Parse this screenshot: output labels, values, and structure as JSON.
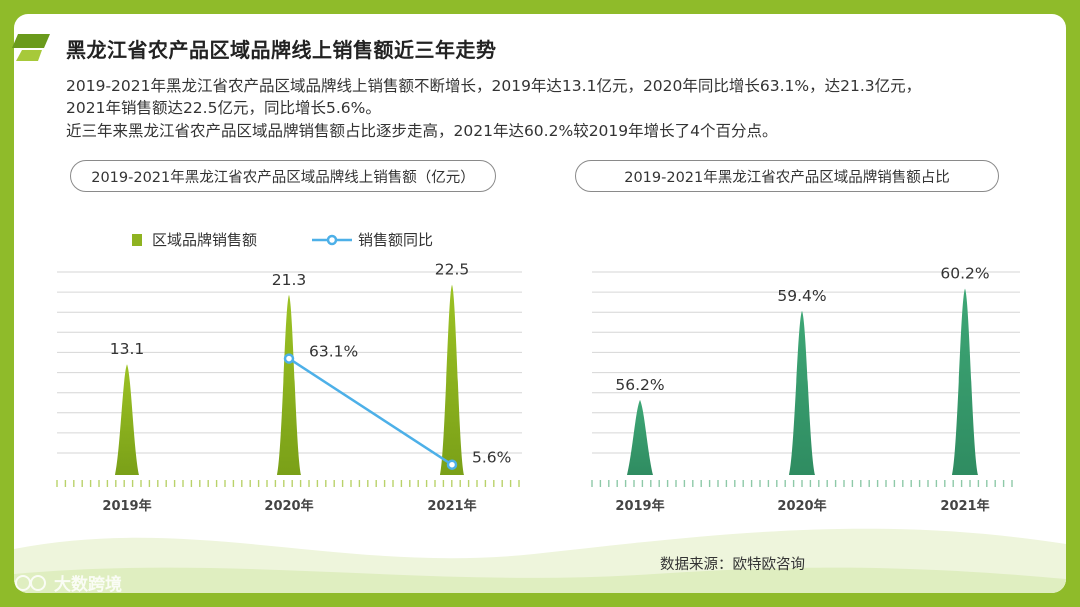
{
  "page": {
    "title": "黑龙江省农产品区域品牌线上销售额近三年走势",
    "summary_line1": "2019-2021年黑龙江省农产品区域品牌线上销售额不断增长，2019年达13.1亿元，2020年同比增长63.1%，达21.3亿元，",
    "summary_line2": "2021年销售额达22.5亿元，同比增长5.6%。",
    "summary_line3": "近三年来黑龙江省农产品区域品牌销售额占比逐步走高，2021年达60.2%较2019年增长了4个百分点。",
    "source": "数据来源：欧特欧咨询",
    "watermark": "大数跨境"
  },
  "colors": {
    "frame": "#8fbb2a",
    "bar_green": "#8fb321",
    "bar_teal": "#3a9a6e",
    "line_blue": "#4db0e8",
    "grid": "#d6d6d6"
  },
  "chart_data": [
    {
      "type": "bar",
      "title": "2019-2021年黑龙江省农产品区域品牌线上销售额（亿元）",
      "categories": [
        "2019年",
        "2020年",
        "2021年"
      ],
      "series": [
        {
          "name": "区域品牌销售额",
          "kind": "bar",
          "values": [
            13.1,
            21.3,
            22.5
          ],
          "labels": [
            "13.1",
            "21.3",
            "22.5"
          ]
        },
        {
          "name": "销售额同比",
          "kind": "line",
          "values": [
            null,
            63.1,
            5.6
          ],
          "labels": [
            "",
            "63.1%",
            "5.6%"
          ]
        }
      ],
      "ylim": [
        0,
        24
      ],
      "y2lim": [
        0,
        110
      ],
      "legend": "top-left",
      "grid": true
    },
    {
      "type": "bar",
      "title": "2019-2021年黑龙江省农产品区域品牌销售额占比",
      "categories": [
        "2019年",
        "2020年",
        "2021年"
      ],
      "series": [
        {
          "name": "销售额占比",
          "kind": "bar",
          "values": [
            56.2,
            59.4,
            60.2
          ],
          "labels": [
            "56.2%",
            "59.4%",
            "60.2%"
          ]
        }
      ],
      "ylim": [
        53.5,
        60.8
      ],
      "grid": true
    }
  ]
}
